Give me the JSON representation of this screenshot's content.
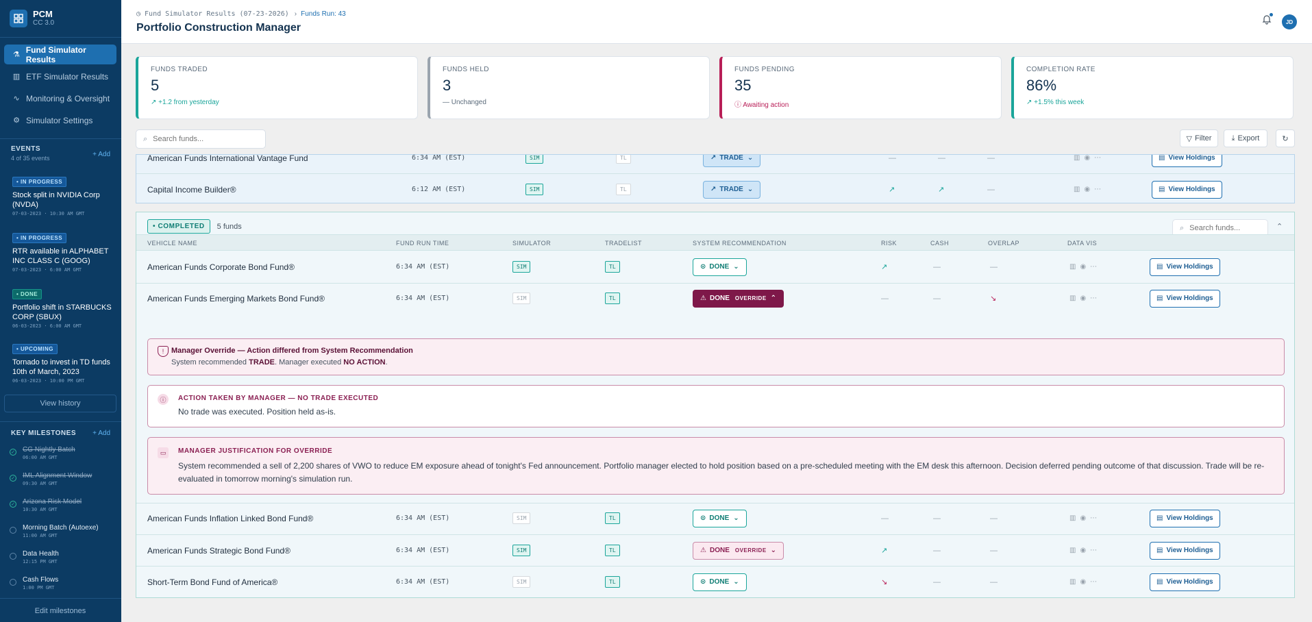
{
  "brand": {
    "title": "PCM",
    "subtitle": "CC 3.0",
    "logo_icon": "grid-icon"
  },
  "nav": [
    {
      "label": "Fund Simulator Results",
      "icon": "flask-icon",
      "active": true
    },
    {
      "label": "ETF Simulator Results",
      "icon": "bar-chart-icon"
    },
    {
      "label": "Monitoring & Oversight",
      "icon": "activity-icon"
    },
    {
      "label": "Simulator Settings",
      "icon": "gear-icon"
    }
  ],
  "events": {
    "label": "EVENTS",
    "sublabel": "4 of 35 events",
    "add_label": "+ Add",
    "items": [
      {
        "status": "• IN PROGRESS",
        "title": "Stock split in NVIDIA Corp (NVDA)",
        "time": "07-03-2023 · 10:30 AM GMT"
      },
      {
        "status": "• IN PROGRESS",
        "title": "RTR available in ALPHABET INC CLASS C (GOOG)",
        "time": "07-03-2023 · 6:00 AM GMT"
      },
      {
        "status": "• DONE",
        "title": "Portfolio shift in STARBUCKS CORP (SBUX)",
        "time": "06-03-2023 · 6:00 AM GMT"
      },
      {
        "status": "• UPCOMING",
        "title": "Tornado to invest in TD funds 10th of March, 2023",
        "time": "06-03-2023 · 10:00 PM GMT"
      }
    ],
    "history_label": "View history"
  },
  "milestones": {
    "label": "KEY MILESTONES",
    "add_label": "+ Add",
    "items": [
      {
        "name": "CG Nightly Batch",
        "time": "06:00 AM GMT",
        "done": true
      },
      {
        "name": "IML Alignment Window",
        "time": "09:30 AM GMT",
        "done": true
      },
      {
        "name": "Arizona Risk Model",
        "time": "10:30 AM GMT",
        "done": true
      },
      {
        "name": "Morning Batch (Autoexe)",
        "time": "11:00 AM GMT",
        "done": false
      },
      {
        "name": "Data Health",
        "time": "12:15 PM GMT",
        "done": false
      },
      {
        "name": "Cash Flows",
        "time": "1:00 PM GMT",
        "done": false
      }
    ],
    "edit_label": "Edit milestones"
  },
  "header": {
    "breadcrumb": "Fund Simulator Results (07-23-2026)",
    "breadcrumb_sep": "›",
    "run_label": "Funds Run: 43",
    "title": "Portfolio Construction Manager",
    "avatar": "JD"
  },
  "kpis": [
    {
      "label": "FUNDS TRADED",
      "value": "5",
      "note": "↗ +1.2 from yesterday",
      "color": "#1aa59a"
    },
    {
      "label": "FUNDS HELD",
      "value": "3",
      "note": "— Unchanged",
      "color": "#9aa4ae"
    },
    {
      "label": "FUNDS PENDING",
      "value": "35",
      "note": "ⓘ Awaiting action",
      "color": "#b81e57"
    },
    {
      "label": "COMPLETION RATE",
      "value": "86%",
      "note": "↗ +1.5% this week",
      "color": "#1aa59a"
    }
  ],
  "toolbar": {
    "search_placeholder": "Search funds...",
    "filter_label": "Filter",
    "export_label": "Export"
  },
  "pending_rows": [
    {
      "name": "American Funds International Vantage Fund",
      "time": "6:34 AM (EST)",
      "sim": "SIM",
      "tl": "TL",
      "rec": "TRADE"
    },
    {
      "name": "Capital Income Builder®",
      "time": "6:12 AM (EST)",
      "sim": "SIM",
      "tl": "TL",
      "rec": "TRADE"
    }
  ],
  "completed": {
    "badge": "• COMPLETED",
    "count": "5 funds",
    "search_placeholder": "Search funds...",
    "columns": [
      "VEHICLE NAME",
      "FUND RUN TIME",
      "SIMULATOR",
      "TRADELIST",
      "SYSTEM RECOMMENDATION",
      "RISK",
      "CASH",
      "OVERLAP",
      "DATA VIS"
    ],
    "rows": [
      {
        "name": "American Funds Corporate Bond Fund®",
        "time": "6:34 AM (EST)",
        "sim": "SIM",
        "tl": "TL",
        "rec": "DONE",
        "override": ""
      },
      {
        "name": "American Funds Emerging Markets Bond Fund®",
        "time": "6:34 AM (EST)",
        "sim": "SIM",
        "tl": "TL",
        "rec": "DONE",
        "override": "OVERRIDE"
      },
      {
        "name": "American Funds Inflation Linked Bond Fund®",
        "time": "6:34 AM (EST)",
        "sim": "SIM",
        "tl": "TL",
        "rec": "DONE",
        "override": ""
      },
      {
        "name": "American Funds Strategic Bond Fund®",
        "time": "6:34 AM (EST)",
        "sim": "SIM",
        "tl": "TL",
        "rec": "DONE",
        "override": "OVERRIDE"
      },
      {
        "name": "Short-Term Bond Fund of America®",
        "time": "6:34 AM (EST)",
        "sim": "SIM",
        "tl": "TL",
        "rec": "DONE",
        "override": ""
      }
    ],
    "view_holdings_label": "View Holdings"
  },
  "override_detail": {
    "alert_title": "Manager Override — Action differed from System Recommendation",
    "alert_pre": "System recommended ",
    "alert_rec": "TRADE",
    "alert_mid": ". Manager executed ",
    "alert_action": "NO ACTION",
    "alert_end": ".",
    "action_title": "ACTION TAKEN BY MANAGER — NO TRADE EXECUTED",
    "action_body": "No trade was executed. Position held as-is.",
    "justification_title": "MANAGER JUSTIFICATION FOR OVERRIDE",
    "justification_body": "System recommended a sell of 2,200 shares of VWO to reduce EM exposure ahead of tonight's Fed announcement. Portfolio manager elected to hold position based on a pre-scheduled meeting with the EM desk this afternoon. Decision deferred pending outcome of that discussion. Trade will be re-evaluated in tomorrow morning's simulation run."
  }
}
